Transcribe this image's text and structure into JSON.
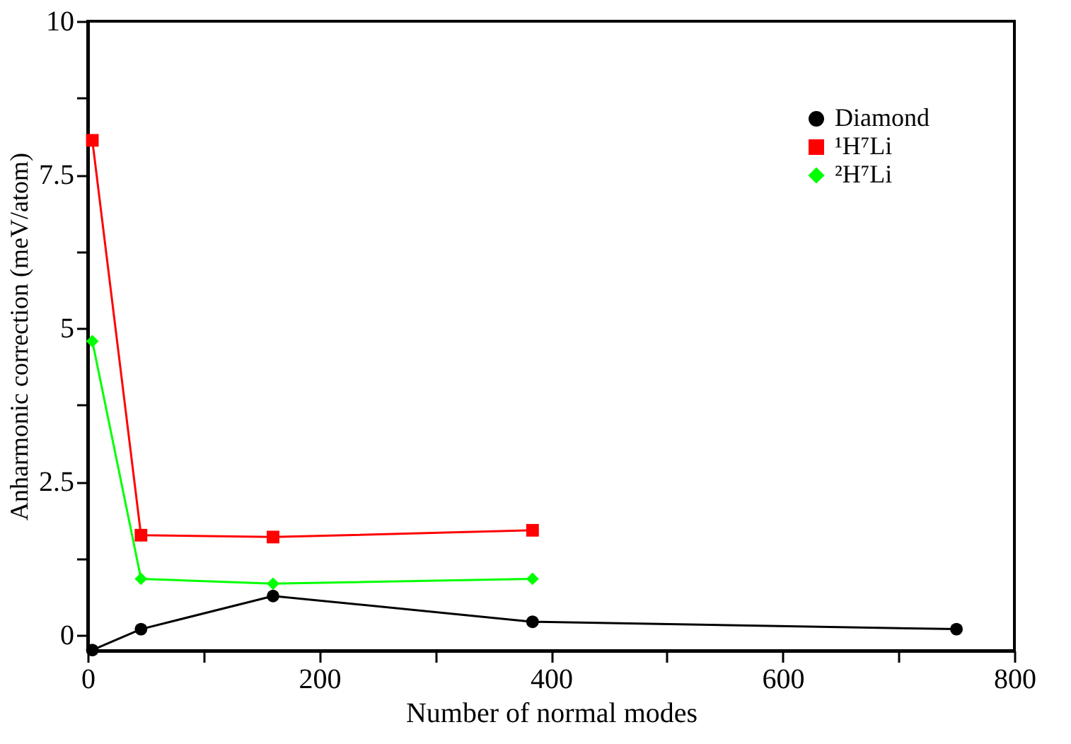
{
  "chart_data": {
    "type": "line",
    "xlabel": "Number of normal modes",
    "ylabel": "Anharmonic correction (meV/atom)",
    "xlim": [
      0,
      800
    ],
    "ylim": [
      -0.25,
      10
    ],
    "xticks": [
      0,
      {
        "value": 100,
        "label": null
      },
      200,
      {
        "value": 300,
        "label": null
      },
      400,
      {
        "value": 500,
        "label": null
      },
      600,
      {
        "value": 700,
        "label": null
      },
      800
    ],
    "yticks": [
      0,
      {
        "value": 1.25,
        "label": null
      },
      2.5,
      {
        "value": 3.75,
        "label": null
      },
      5,
      {
        "value": 6.25,
        "label": null
      },
      7.5,
      {
        "value": 8.75,
        "label": null
      },
      10
    ],
    "grid": false,
    "legend": "top right",
    "marker": "circle",
    "line_style": "solid",
    "series": [
      {
        "name": "Diamond",
        "color": "#000000",
        "marker": "circle",
        "x": [
          4,
          46,
          160,
          384,
          750
        ],
        "values": [
          -0.24,
          0.1,
          0.64,
          0.22,
          0.1
        ]
      },
      {
        "name": "¹H⁷Li",
        "color": "#ff0000",
        "marker": "square",
        "x": [
          4,
          46,
          160,
          384
        ],
        "values": [
          8.06,
          1.63,
          1.6,
          1.71
        ]
      },
      {
        "name": "²H⁷Li",
        "color": "#00ff00",
        "marker": "diamond",
        "x": [
          4,
          46,
          160,
          384
        ],
        "values": [
          4.79,
          0.92,
          0.84,
          0.92
        ]
      }
    ]
  }
}
